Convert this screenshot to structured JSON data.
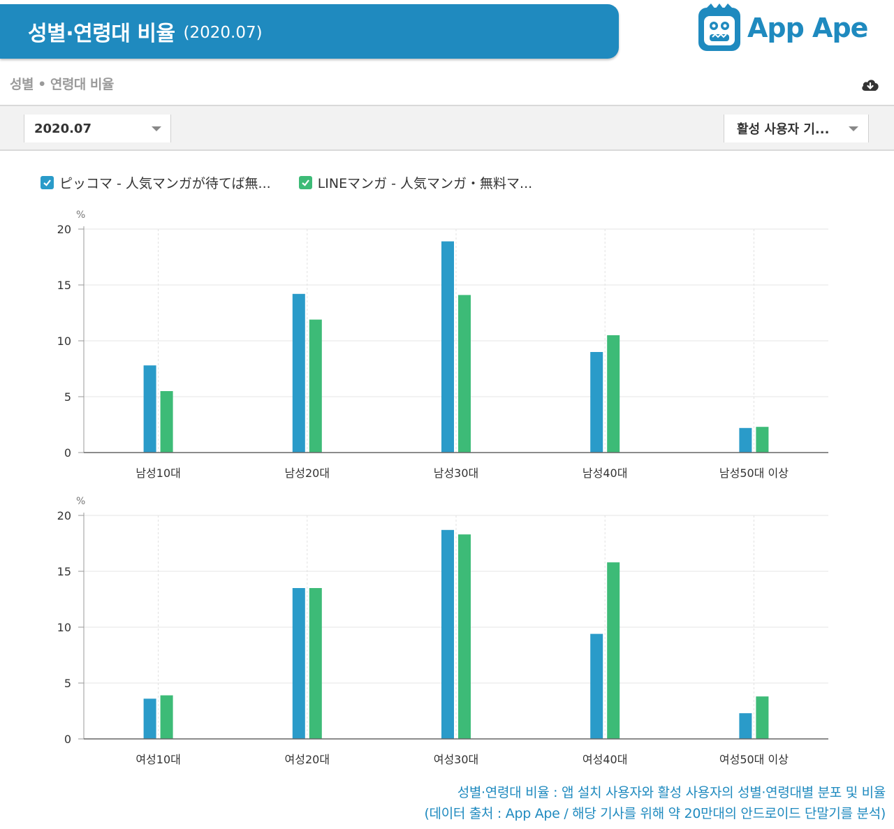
{
  "banner": {
    "title": "성별·연령대 비율",
    "date": "(2020.07)"
  },
  "logo": {
    "text": "App Ape"
  },
  "subheader": {
    "title": "성별 • 연령대 비율"
  },
  "filters": {
    "date_value": "2020.07",
    "metric_value": "활성 사용자 기..."
  },
  "legend": {
    "items": [
      {
        "label": "ピッコマ - 人気マンガが待てば無...",
        "color": "#2a9bc9"
      },
      {
        "label": "LINEマンガ - 人気マンガ・無料マ...",
        "color": "#3dbb77"
      }
    ]
  },
  "chart_data": [
    {
      "type": "bar",
      "ylabel": "%",
      "ylim": [
        0,
        20
      ],
      "yticks": [
        "0",
        "5",
        "10",
        "15",
        "20"
      ],
      "categories": [
        "남성10대",
        "남성20대",
        "남성30대",
        "남성40대",
        "남성50대 이상"
      ],
      "series": [
        {
          "name": "ピッコマ - 人気マンガが待てば無...",
          "color": "#2a9bc9",
          "values": [
            7.8,
            14.2,
            18.9,
            9.0,
            2.2
          ]
        },
        {
          "name": "LINEマンガ - 人気マンガ・無料マ...",
          "color": "#3dbb77",
          "values": [
            5.5,
            11.9,
            14.1,
            10.5,
            2.3
          ]
        }
      ],
      "grid": true
    },
    {
      "type": "bar",
      "ylabel": "%",
      "ylim": [
        0,
        20
      ],
      "yticks": [
        "0",
        "5",
        "10",
        "15",
        "20"
      ],
      "categories": [
        "여성10대",
        "여성20대",
        "여성30대",
        "여성40대",
        "여성50대 이상"
      ],
      "series": [
        {
          "name": "ピッコマ - 人気マンガが待てば無...",
          "color": "#2a9bc9",
          "values": [
            3.6,
            13.5,
            18.7,
            9.4,
            2.3
          ]
        },
        {
          "name": "LINEマンガ - 人気マンガ・無料マ...",
          "color": "#3dbb77",
          "values": [
            3.9,
            13.5,
            18.3,
            15.8,
            3.8
          ]
        }
      ],
      "grid": true
    }
  ],
  "caption": {
    "line1": "성별·연령대 비율 : 앱 설치 사용자와 활성 사용자의 성별·연령대별 분포 및 비율",
    "line2": "(데이터 출처 : App Ape / 해당 기사를 위해 약 20만대의 안드로이드 단말기를 분석)"
  }
}
